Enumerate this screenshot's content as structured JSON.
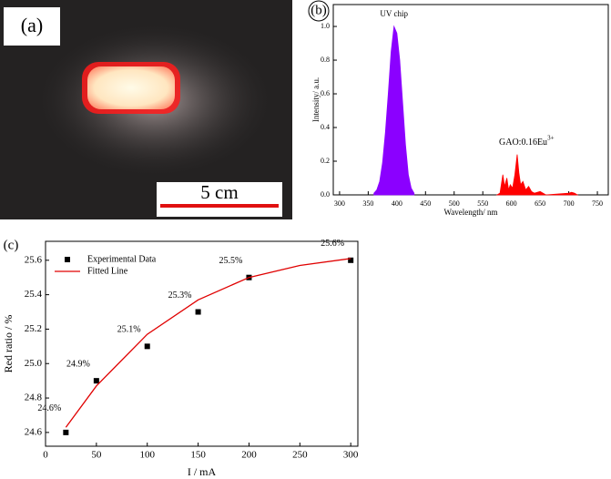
{
  "photo": {
    "label": "(a)",
    "scale_text": "5 cm"
  },
  "chart_data": [
    {
      "type": "area",
      "panel_label": "(b)",
      "xlabel": "Wavelength/ nm",
      "ylabel": "Intensity/ a.u.",
      "xlim": [
        289,
        769
      ],
      "xticks": [
        300,
        350,
        400,
        450,
        500,
        550,
        600,
        650,
        700,
        750
      ],
      "ylim": [
        0,
        1.13
      ],
      "yticks": [
        {
          "value": 0,
          "label": "0.0"
        },
        0.2,
        0.4,
        0.6,
        0.8,
        {
          "value": 1,
          "label": "1.0"
        }
      ],
      "annotations": [
        "UV chip",
        {
          "text": "GAO:0.16Eu",
          "sup": "3+"
        }
      ],
      "series": [
        {
          "color": "#8b00ff",
          "x": [
            360,
            365,
            370,
            375,
            380,
            385,
            390,
            395,
            400,
            405,
            410,
            415,
            420,
            425,
            430
          ],
          "values": [
            0.01,
            0.03,
            0.08,
            0.19,
            0.37,
            0.6,
            0.85,
            1.0,
            0.96,
            0.8,
            0.55,
            0.3,
            0.12,
            0.04,
            0.01
          ]
        },
        {
          "color": "#ff0000",
          "x": [
            575,
            580,
            585,
            588,
            592,
            595,
            598,
            602,
            606,
            610,
            613,
            616,
            620,
            625,
            630,
            635,
            640,
            650,
            655,
            660,
            700,
            705,
            710,
            715
          ],
          "values": [
            0,
            0.01,
            0.12,
            0.05,
            0.1,
            0.03,
            0.06,
            0.04,
            0.12,
            0.24,
            0.13,
            0.06,
            0.08,
            0.03,
            0.05,
            0.02,
            0.01,
            0.02,
            0.01,
            0,
            0.01,
            0.015,
            0.01,
            0
          ]
        }
      ]
    },
    {
      "type": "scatter",
      "panel_label": "(c)",
      "xlabel": "I / mA",
      "ylabel": "Red ratio / %",
      "xlim": [
        0,
        307
      ],
      "xticks": [
        0,
        50,
        100,
        150,
        200,
        250,
        300
      ],
      "ylim": [
        24.52,
        25.71
      ],
      "yticks": [
        24.6,
        24.8,
        {
          "value": 25,
          "label": "25.0"
        },
        25.2,
        25.4,
        25.6
      ],
      "series": [
        {
          "name": "Experimental Data",
          "style": "markers",
          "color": "#000000",
          "x": [
            20,
            50,
            100,
            150,
            200,
            300
          ],
          "values": [
            24.6,
            24.9,
            25.1,
            25.3,
            25.5,
            25.6
          ],
          "value_labels": [
            "24.6%",
            "24.9%",
            "25.1%",
            "25.3%",
            "25.5%",
            "25.6%"
          ]
        },
        {
          "name": "Fitted Line",
          "style": "line",
          "color": "#e00000",
          "x": [
            20,
            50,
            100,
            150,
            200,
            250,
            300
          ],
          "values": [
            24.63,
            24.87,
            25.17,
            25.37,
            25.5,
            25.57,
            25.61
          ]
        }
      ]
    }
  ]
}
